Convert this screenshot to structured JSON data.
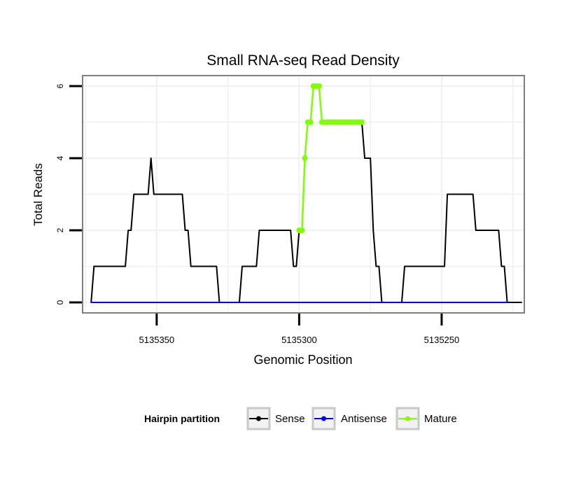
{
  "chart_data": {
    "type": "line",
    "title": "Small RNA-seq Read Density",
    "xlabel": "Genomic Position",
    "ylabel": "Total Reads",
    "xlim": [
      5135376,
      5135221
    ],
    "ylim": [
      0,
      6
    ],
    "x_reversed": true,
    "grid": true,
    "xticks": [
      5135350,
      5135300,
      5135250
    ],
    "xtick_labels": [
      "5135350",
      "5135300",
      "5135250"
    ],
    "yticks": [
      0,
      2,
      4,
      6
    ],
    "ytick_labels": [
      "0",
      "2",
      "4",
      "6"
    ],
    "legend": {
      "title": "Hairpin partition",
      "position": "bottom",
      "entries": [
        {
          "label": "Sense",
          "color": "#000000"
        },
        {
          "label": "Antisense",
          "color": "#0000ff"
        },
        {
          "label": "Mature",
          "color": "#7fff00"
        }
      ]
    },
    "series": [
      {
        "name": "Sense",
        "color": "#000000",
        "points": [
          [
            5135373,
            0
          ],
          [
            5135372,
            1
          ],
          [
            5135361,
            1
          ],
          [
            5135360,
            2
          ],
          [
            5135359,
            2
          ],
          [
            5135358,
            3
          ],
          [
            5135353,
            3
          ],
          [
            5135352,
            4
          ],
          [
            5135351,
            3
          ],
          [
            5135341,
            3
          ],
          [
            5135340,
            2
          ],
          [
            5135339,
            2
          ],
          [
            5135338,
            1
          ],
          [
            5135329,
            1
          ],
          [
            5135328,
            0
          ],
          [
            5135321,
            0
          ],
          [
            5135320,
            1
          ],
          [
            5135315,
            1
          ],
          [
            5135314,
            2
          ],
          [
            5135303,
            2
          ],
          [
            5135302,
            1
          ],
          [
            5135301,
            1
          ],
          [
            5135300,
            2
          ],
          [
            5135299,
            2
          ],
          [
            5135298,
            4
          ],
          [
            5135297,
            5
          ],
          [
            5135296,
            5
          ],
          [
            5135295,
            6
          ],
          [
            5135293,
            6
          ],
          [
            5135292,
            5
          ],
          [
            5135278,
            5
          ],
          [
            5135277,
            4
          ],
          [
            5135275,
            4
          ],
          [
            5135274,
            2
          ],
          [
            5135273,
            1
          ],
          [
            5135272,
            1
          ],
          [
            5135271,
            0
          ],
          [
            5135264,
            0
          ],
          [
            5135263,
            1
          ],
          [
            5135249,
            1
          ],
          [
            5135248,
            3
          ],
          [
            5135239,
            3
          ],
          [
            5135238,
            2
          ],
          [
            5135230,
            2
          ],
          [
            5135229,
            1
          ],
          [
            5135228,
            1
          ],
          [
            5135227,
            0
          ],
          [
            5135222,
            0
          ]
        ]
      },
      {
        "name": "Antisense",
        "color": "#0000ff",
        "points": [
          [
            5135373,
            0
          ],
          [
            5135227,
            0
          ]
        ]
      },
      {
        "name": "Mature",
        "color": "#7fff00",
        "points": [
          [
            5135300,
            2
          ],
          [
            5135299,
            2
          ],
          [
            5135298,
            4
          ],
          [
            5135297,
            5
          ],
          [
            5135296,
            5
          ],
          [
            5135295,
            6
          ],
          [
            5135294,
            6
          ],
          [
            5135293,
            6
          ],
          [
            5135292,
            5
          ],
          [
            5135291,
            5
          ],
          [
            5135290,
            5
          ],
          [
            5135289,
            5
          ],
          [
            5135288,
            5
          ],
          [
            5135287,
            5
          ],
          [
            5135286,
            5
          ],
          [
            5135285,
            5
          ],
          [
            5135284,
            5
          ],
          [
            5135283,
            5
          ],
          [
            5135282,
            5
          ],
          [
            5135281,
            5
          ],
          [
            5135280,
            5
          ],
          [
            5135279,
            5
          ],
          [
            5135278,
            5
          ]
        ]
      }
    ]
  }
}
